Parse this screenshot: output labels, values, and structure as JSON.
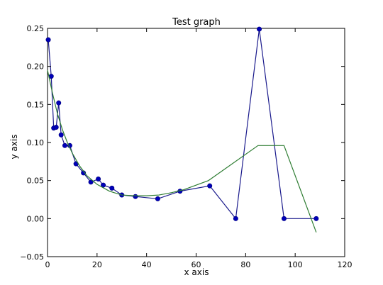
{
  "chart_data": {
    "type": "line",
    "title": "Test graph",
    "xlabel": "x axis",
    "ylabel": "y axis",
    "xlim": [
      0,
      120
    ],
    "ylim": [
      -0.05,
      0.25
    ],
    "xticks": [
      "0",
      "20",
      "40",
      "60",
      "80",
      "100",
      "120"
    ],
    "yticks": [
      "−0.05",
      "0.00",
      "0.05",
      "0.10",
      "0.15",
      "0.20",
      "0.25"
    ],
    "xtick_values": [
      0,
      20,
      40,
      60,
      80,
      100,
      120
    ],
    "ytick_values": [
      -0.05,
      0.0,
      0.05,
      0.1,
      0.15,
      0.2,
      0.25
    ],
    "grid": false,
    "series": [
      {
        "color": "#1a1a8c",
        "marker": "circle",
        "x": [
          0.3,
          1.5,
          2.5,
          3.5,
          4.5,
          5.5,
          7.0,
          9.0,
          11.5,
          14.5,
          17.5,
          20.5,
          22.5,
          26.0,
          30.0,
          35.5,
          44.5,
          53.5,
          65.5,
          76.0,
          85.5,
          95.5,
          108.5
        ],
        "y": [
          0.235,
          0.187,
          0.119,
          0.12,
          0.152,
          0.11,
          0.096,
          0.096,
          0.072,
          0.06,
          0.048,
          0.052,
          0.044,
          0.04,
          0.031,
          0.029,
          0.026,
          0.036,
          0.043,
          0.0,
          0.249,
          0.0,
          0.0
        ]
      },
      {
        "color": "#2e7d32",
        "marker": "none",
        "x": [
          0,
          2,
          4,
          6,
          8,
          10,
          13,
          16,
          20,
          25,
          30,
          35,
          40,
          45,
          50,
          55,
          65,
          85,
          95.5,
          108.5
        ],
        "y": [
          0.195,
          0.165,
          0.138,
          0.117,
          0.1,
          0.086,
          0.069,
          0.056,
          0.045,
          0.036,
          0.031,
          0.03,
          0.03,
          0.031,
          0.034,
          0.038,
          0.05,
          0.096,
          0.096,
          -0.018
        ]
      }
    ]
  }
}
